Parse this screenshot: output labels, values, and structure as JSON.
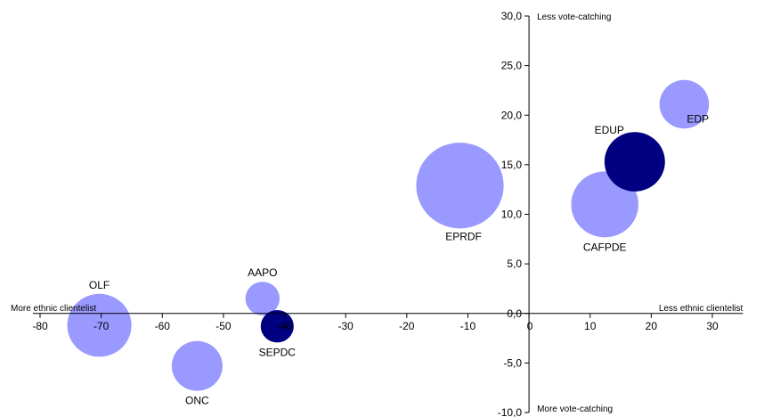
{
  "chart_data": {
    "type": "bubble",
    "title": "",
    "xlim": [
      -80,
      35
    ],
    "ylim": [
      -10,
      30
    ],
    "x_ticks": [
      -80,
      -70,
      -60,
      -50,
      -40,
      -30,
      -20,
      -10,
      0,
      10,
      20,
      30
    ],
    "x_tick_labels": [
      "-80",
      "-70",
      "-60",
      "-50",
      "-40",
      "-30",
      "-20",
      "-10",
      "0",
      "10",
      "20",
      "30"
    ],
    "y_ticks": [
      -10,
      -5,
      0,
      5,
      10,
      15,
      20,
      25,
      30
    ],
    "y_tick_labels": [
      "-10,0",
      "-5,0",
      "0,0",
      "5,0",
      "10,0",
      "15,0",
      "20,0",
      "25,0",
      "30,0"
    ],
    "axis_notes": {
      "top": "Less vote-catching",
      "bottom": "More vote-catching",
      "left": "More ethnic clientelist",
      "right": "Less ethnic clientelist"
    },
    "grid": false,
    "colors": {
      "light": "#9999ff",
      "dark": "#000080"
    },
    "points": [
      {
        "label": "OLF",
        "x": -70.3,
        "y": -1.2,
        "size": 10.5,
        "color": "light",
        "label_pos": "above"
      },
      {
        "label": "ONC",
        "x": -54.3,
        "y": -5.3,
        "size": 8.3,
        "color": "light",
        "label_pos": "below"
      },
      {
        "label": "AAPO",
        "x": -43.6,
        "y": 1.5,
        "size": 5.6,
        "color": "light",
        "label_pos": "above"
      },
      {
        "label": "SEPDC",
        "x": -41.2,
        "y": -1.3,
        "size": 5.4,
        "color": "dark",
        "label_pos": "below"
      },
      {
        "label": "EPRDF",
        "x": -11.3,
        "y": 12.9,
        "size": 14.3,
        "color": "light",
        "label_pos": "below-right"
      },
      {
        "label": "CAFPDE",
        "x": 12.4,
        "y": 11.0,
        "size": 11.0,
        "color": "light",
        "label_pos": "below"
      },
      {
        "label": "EDUP",
        "x": 17.3,
        "y": 15.3,
        "size": 9.9,
        "color": "dark",
        "label_pos": "upper-left"
      },
      {
        "label": "EDP",
        "x": 25.4,
        "y": 21.1,
        "size": 8.1,
        "color": "light",
        "label_pos": "lower-right"
      }
    ]
  }
}
